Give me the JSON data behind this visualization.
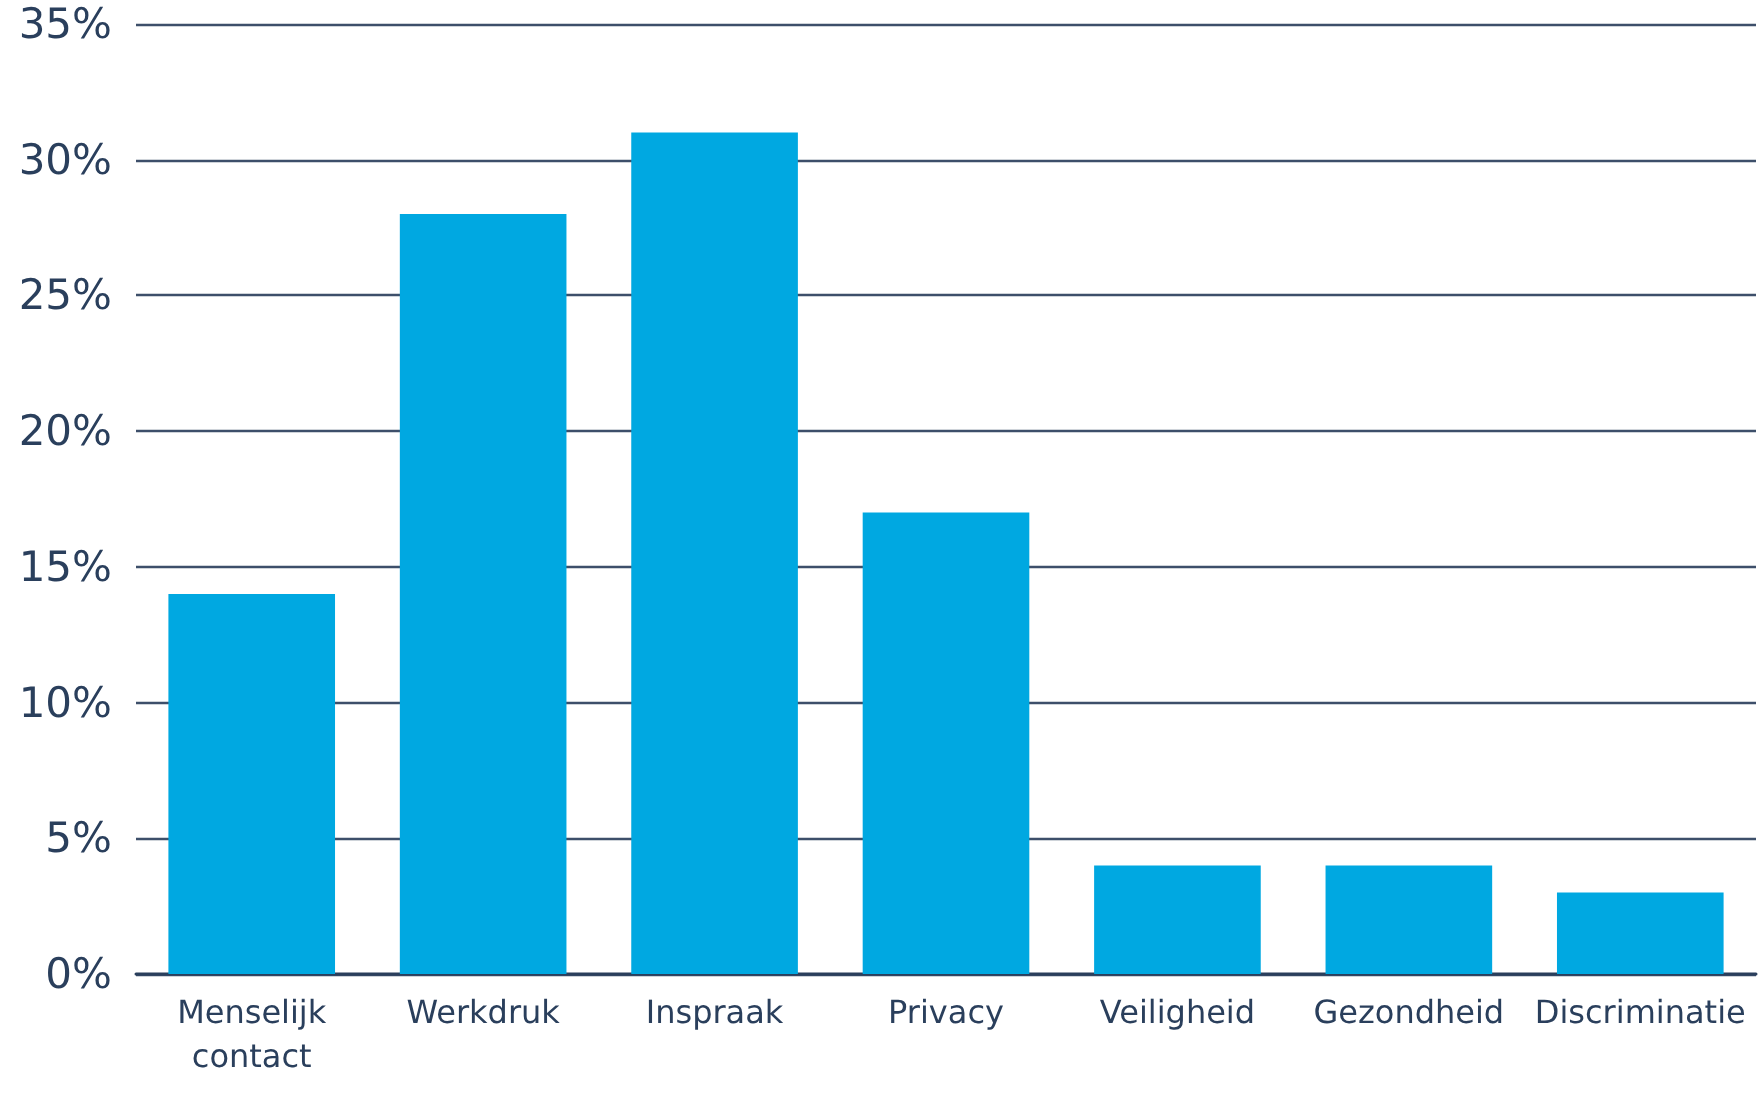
{
  "chart_data": {
    "type": "bar",
    "categories": [
      "Menselijk\ncontact",
      "Werkdruk",
      "Inspraak",
      "Privacy",
      "Veiligheid",
      "Gezondheid",
      "Discriminatie"
    ],
    "values": [
      14,
      28,
      31,
      17,
      4,
      4,
      3
    ],
    "color": "#00a8e1",
    "ylim": [
      0,
      35
    ],
    "yticks": [
      {
        "value": 0,
        "label": "0%"
      },
      {
        "value": 5,
        "label": "5%"
      },
      {
        "value": 10,
        "label": "10%"
      },
      {
        "value": 15,
        "label": "15%"
      },
      {
        "value": 20,
        "label": "20%"
      },
      {
        "value": 25,
        "label": "25%"
      },
      {
        "value": 30,
        "label": "30%"
      },
      {
        "value": 35,
        "label": "35%"
      }
    ],
    "grid": "y"
  }
}
